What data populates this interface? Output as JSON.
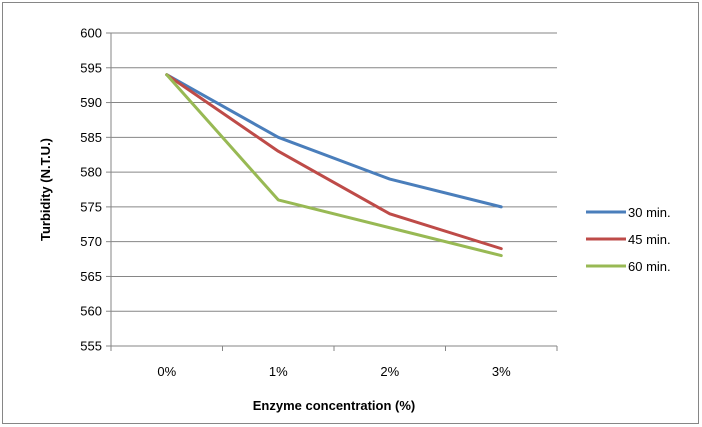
{
  "chart_data": {
    "type": "line",
    "title": "",
    "xlabel": "Enzyme concentration (%)",
    "ylabel": "Turbidity (N.T.U.)",
    "categories": [
      "0%",
      "1%",
      "2%",
      "3%"
    ],
    "ylim": [
      555,
      600
    ],
    "ytick_step": 5,
    "yticks": [
      "555",
      "560",
      "565",
      "570",
      "575",
      "580",
      "585",
      "590",
      "595",
      "600"
    ],
    "grid": true,
    "legend_position": "right",
    "series": [
      {
        "name": "30 min.",
        "color": "#4a7ebb",
        "values": [
          594,
          585,
          579,
          575
        ]
      },
      {
        "name": "45 min.",
        "color": "#be4b48",
        "values": [
          594,
          583,
          574,
          569
        ]
      },
      {
        "name": "60 min.",
        "color": "#98b954",
        "values": [
          594,
          576,
          572,
          568
        ]
      }
    ]
  }
}
